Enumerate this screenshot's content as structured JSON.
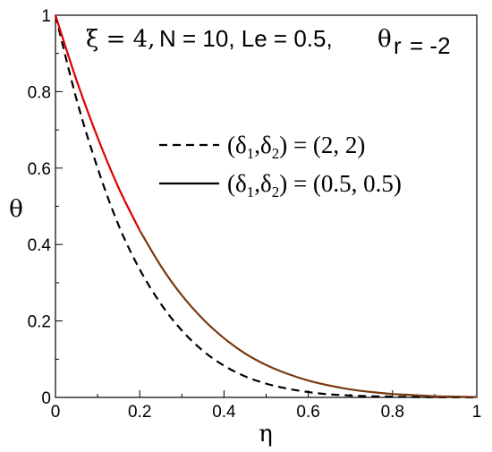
{
  "chart_data": {
    "type": "line",
    "xlabel": "η",
    "ylabel": "θ",
    "xlim": [
      0,
      1
    ],
    "ylim": [
      0,
      1
    ],
    "x_ticks": [
      "0",
      "0.2",
      "0.4",
      "0.6",
      "0.8",
      "1"
    ],
    "y_ticks": [
      "0",
      "0.2",
      "0.4",
      "0.6",
      "0.8",
      "1"
    ],
    "annotation": {
      "xi": "ξ = 4,",
      "params": "N = 10, Le = 0.5,",
      "theta_r_symbol": "θ",
      "theta_r_sub": "r",
      "theta_r_value": "= -2"
    },
    "legend_placement": "upper-right",
    "grid": false,
    "series": [
      {
        "name": "(δ1,δ2) = (2, 2)",
        "label_parts": [
          "(δ",
          "1",
          ",δ",
          "2",
          ") = (2, 2)"
        ],
        "style": "dashed",
        "color": "#000000",
        "x": [
          0,
          0.05,
          0.1,
          0.15,
          0.2,
          0.25,
          0.3,
          0.35,
          0.4,
          0.45,
          0.5,
          0.55,
          0.6,
          0.65,
          0.7,
          0.75,
          0.8,
          0.85,
          0.9,
          0.95,
          1
        ],
        "y": [
          1,
          0.78,
          0.6,
          0.45,
          0.335,
          0.245,
          0.175,
          0.122,
          0.083,
          0.055,
          0.036,
          0.023,
          0.014,
          0.008,
          0.005,
          0.003,
          0.002,
          0.001,
          0.0005,
          0.0002,
          0
        ]
      },
      {
        "name": "(δ1,δ2) = (0.5, 0.5)",
        "label_parts": [
          "(δ",
          "1",
          ",δ",
          "2",
          ") = (0.5, 0.5)"
        ],
        "style": "solid",
        "color": "#dd0000",
        "color_right": "#7a3a10",
        "x": [
          0,
          0.05,
          0.1,
          0.15,
          0.2,
          0.25,
          0.3,
          0.35,
          0.4,
          0.45,
          0.5,
          0.55,
          0.6,
          0.65,
          0.7,
          0.75,
          0.8,
          0.85,
          0.9,
          0.95,
          1
        ],
        "y": [
          1,
          0.83,
          0.68,
          0.548,
          0.437,
          0.344,
          0.267,
          0.205,
          0.155,
          0.115,
          0.085,
          0.062,
          0.044,
          0.031,
          0.021,
          0.014,
          0.009,
          0.006,
          0.003,
          0.002,
          0.001
        ]
      }
    ]
  }
}
